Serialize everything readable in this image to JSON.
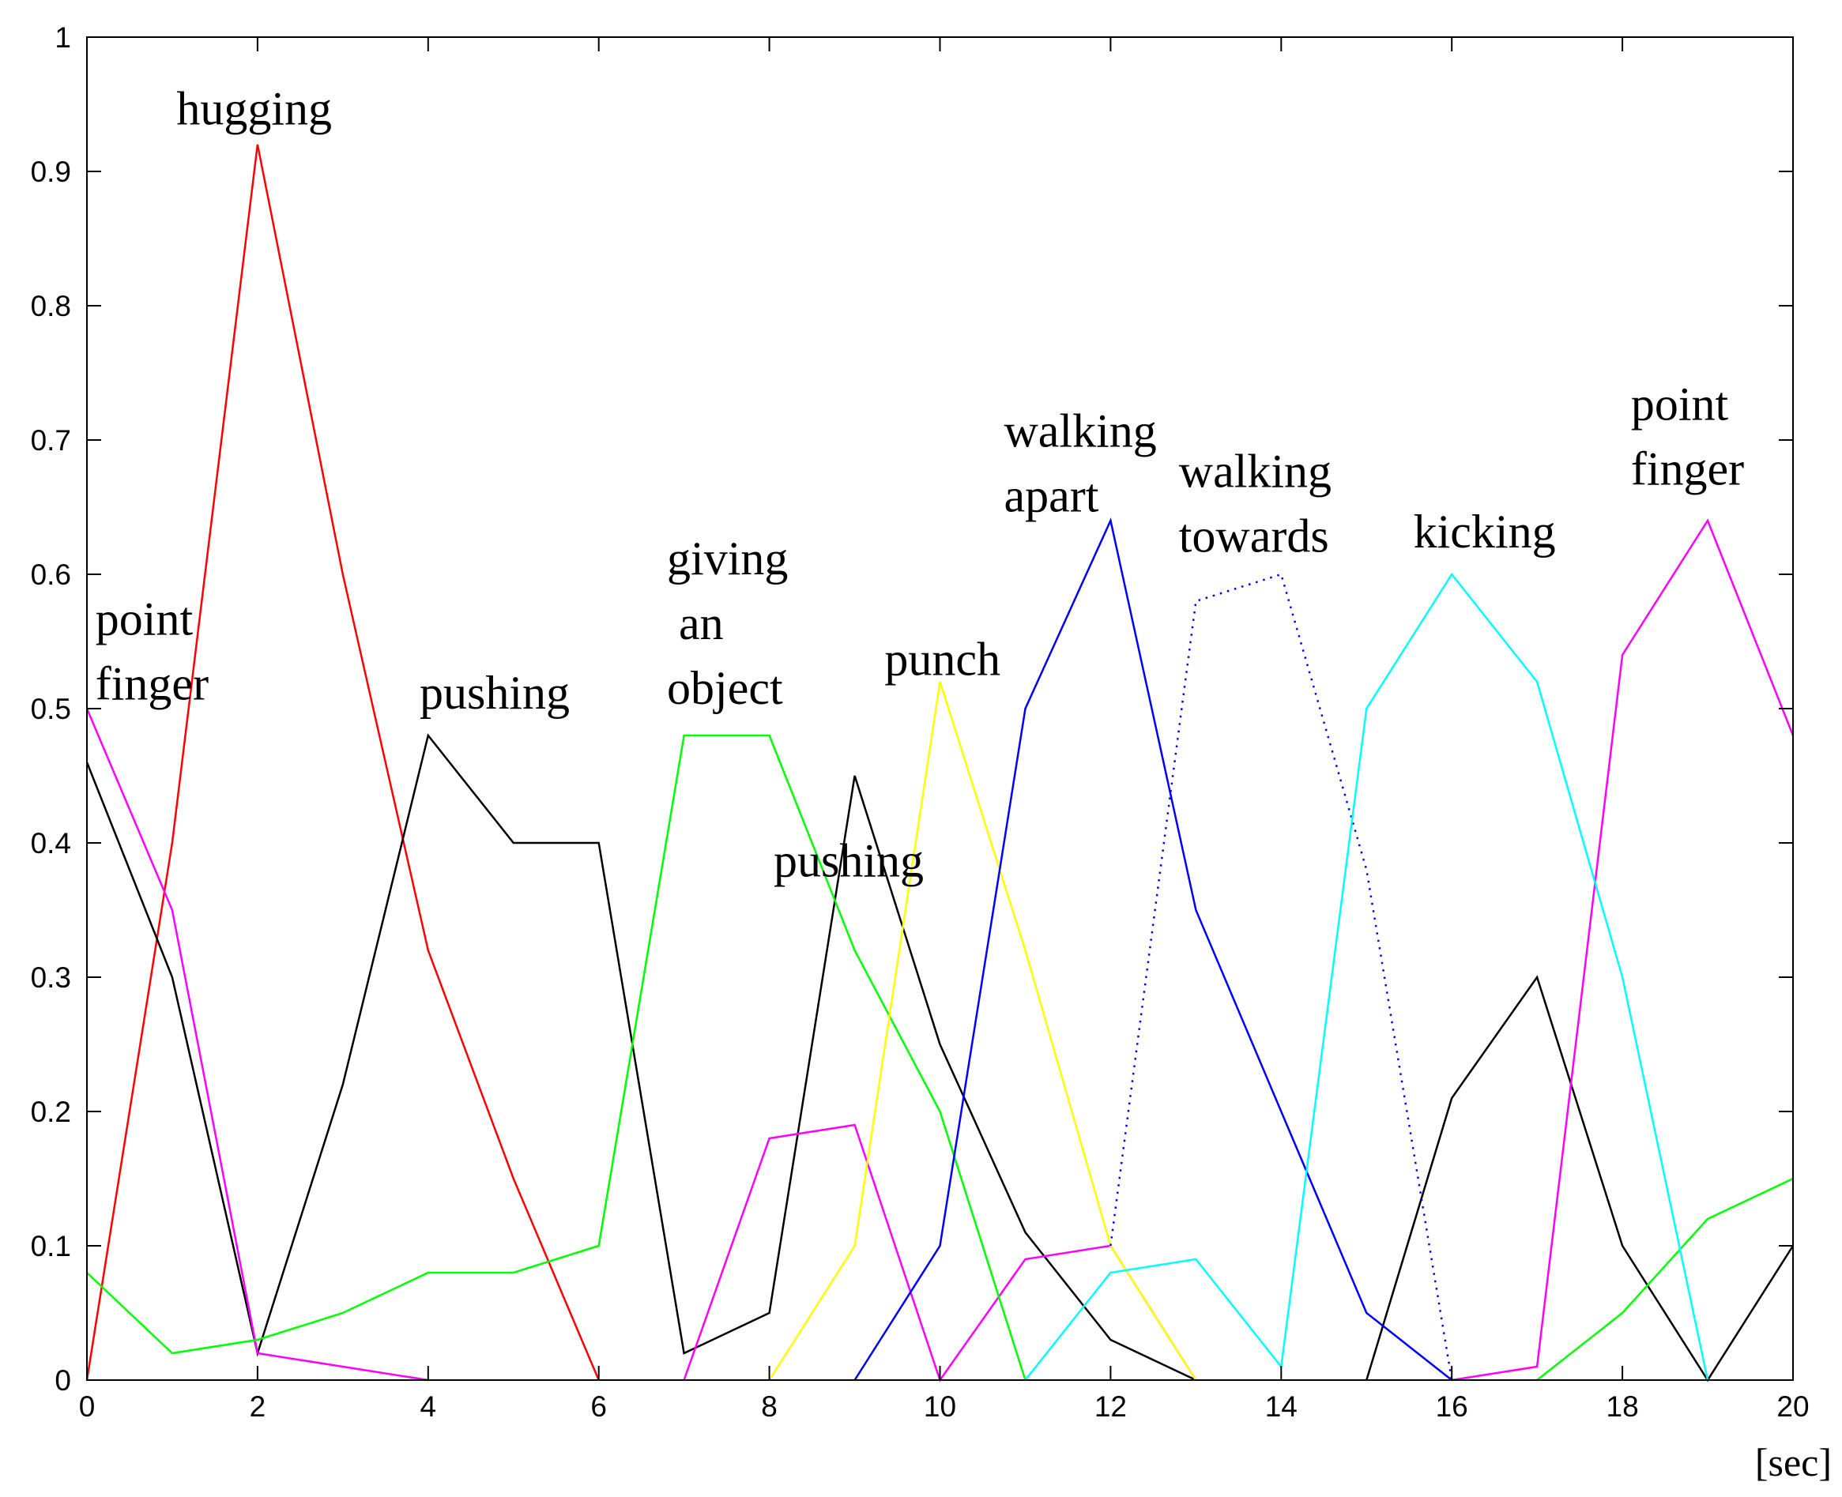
{
  "chart_data": {
    "type": "line",
    "xlim": [
      0,
      20
    ],
    "ylim": [
      0,
      1
    ],
    "x_ticks": [
      "0",
      "2",
      "4",
      "6",
      "8",
      "10",
      "12",
      "14",
      "16",
      "18",
      "20"
    ],
    "y_ticks": [
      "0",
      "0.1",
      "0.2",
      "0.3",
      "0.4",
      "0.5",
      "0.6",
      "0.7",
      "0.8",
      "0.9",
      "1"
    ],
    "x_unit": "[sec]",
    "grid": false,
    "series": [
      {
        "color": "#ff0000",
        "style": "solid",
        "points": [
          [
            0,
            0
          ],
          [
            1,
            0.4
          ],
          [
            2,
            0.92
          ],
          [
            3,
            0.6
          ],
          [
            4,
            0.32
          ],
          [
            5,
            0.15
          ],
          [
            6,
            0
          ]
        ]
      },
      {
        "color": "#000000",
        "style": "solid",
        "points": [
          [
            0,
            0.46
          ],
          [
            1,
            0.3
          ],
          [
            2,
            0.02
          ],
          [
            3,
            0.22
          ],
          [
            4,
            0.48
          ],
          [
            5,
            0.4
          ],
          [
            6,
            0.4
          ],
          [
            7,
            0.02
          ],
          [
            8,
            0.05
          ],
          [
            9,
            0.45
          ],
          [
            10,
            0.25
          ],
          [
            11,
            0.11
          ],
          [
            12,
            0.03
          ],
          [
            13,
            0
          ]
        ]
      },
      {
        "color": "#000000",
        "style": "solid",
        "points": [
          [
            15,
            0
          ],
          [
            16,
            0.21
          ],
          [
            17,
            0.3
          ],
          [
            18,
            0.1
          ],
          [
            19,
            0
          ],
          [
            20,
            0.1
          ]
        ]
      },
      {
        "color": "#ff00ff",
        "style": "solid",
        "points": [
          [
            0,
            0.5
          ],
          [
            1,
            0.35
          ],
          [
            2,
            0.02
          ],
          [
            3,
            0.01
          ],
          [
            4,
            0
          ]
        ]
      },
      {
        "color": "#ff00ff",
        "style": "solid",
        "points": [
          [
            7,
            0
          ],
          [
            8,
            0.18
          ],
          [
            9,
            0.19
          ],
          [
            10,
            0
          ],
          [
            11,
            0.09
          ],
          [
            12,
            0.1
          ],
          [
            13,
            0
          ]
        ]
      },
      {
        "color": "#ff00ff",
        "style": "solid",
        "points": [
          [
            16,
            0
          ],
          [
            17,
            0.01
          ],
          [
            18,
            0.54
          ],
          [
            19,
            0.64
          ],
          [
            20,
            0.48
          ]
        ]
      },
      {
        "color": "#00ff00",
        "style": "solid",
        "points": [
          [
            0,
            0.08
          ],
          [
            1,
            0.02
          ],
          [
            2,
            0.03
          ],
          [
            3,
            0.05
          ],
          [
            4,
            0.08
          ],
          [
            5,
            0.08
          ],
          [
            6,
            0.1
          ],
          [
            7,
            0.48
          ],
          [
            8,
            0.48
          ],
          [
            9,
            0.32
          ],
          [
            10,
            0.2
          ],
          [
            11,
            0
          ]
        ]
      },
      {
        "color": "#00ff00",
        "style": "solid",
        "points": [
          [
            17,
            0
          ],
          [
            18,
            0.05
          ],
          [
            19,
            0.12
          ],
          [
            20,
            0.15
          ]
        ]
      },
      {
        "color": "#ffff00",
        "style": "solid",
        "points": [
          [
            8,
            0
          ],
          [
            9,
            0.1
          ],
          [
            10,
            0.52
          ],
          [
            11,
            0.32
          ],
          [
            12,
            0.1
          ],
          [
            13,
            0
          ]
        ]
      },
      {
        "color": "#0000ff",
        "style": "solid",
        "points": [
          [
            9,
            0
          ],
          [
            10,
            0.1
          ],
          [
            11,
            0.5
          ],
          [
            12,
            0.64
          ],
          [
            13,
            0.35
          ],
          [
            14,
            0.2
          ],
          [
            15,
            0.05
          ],
          [
            16,
            0
          ]
        ]
      },
      {
        "color": "#0000ff",
        "style": "dotted",
        "points": [
          [
            12,
            0.1
          ],
          [
            13,
            0.58
          ],
          [
            14,
            0.6
          ],
          [
            15,
            0.38
          ],
          [
            16,
            0
          ]
        ]
      },
      {
        "color": "#00ffff",
        "style": "solid",
        "points": [
          [
            11,
            0
          ],
          [
            12,
            0.08
          ],
          [
            13,
            0.09
          ],
          [
            14,
            0.01
          ],
          [
            15,
            0.5
          ],
          [
            16,
            0.6
          ],
          [
            17,
            0.52
          ],
          [
            18,
            0.3
          ],
          [
            19,
            0
          ]
        ]
      }
    ],
    "annotations": [
      {
        "lines": [
          "point",
          "finger"
        ],
        "x": 0.1,
        "y": 0.555
      },
      {
        "lines": [
          "hugging"
        ],
        "x": 1.05,
        "y": 0.935
      },
      {
        "lines": [
          "pushing"
        ],
        "x": 3.9,
        "y": 0.5
      },
      {
        "lines": [
          "giving",
          " an",
          "object"
        ],
        "x": 6.8,
        "y": 0.6
      },
      {
        "lines": [
          "pushing"
        ],
        "x": 8.05,
        "y": 0.375
      },
      {
        "lines": [
          "punch"
        ],
        "x": 9.35,
        "y": 0.525
      },
      {
        "lines": [
          "walking",
          "apart"
        ],
        "x": 10.75,
        "y": 0.695
      },
      {
        "lines": [
          "walking",
          "towards"
        ],
        "x": 12.8,
        "y": 0.665
      },
      {
        "lines": [
          "kicking"
        ],
        "x": 15.55,
        "y": 0.62
      },
      {
        "lines": [
          "point",
          "finger"
        ],
        "x": 18.1,
        "y": 0.715
      }
    ]
  }
}
